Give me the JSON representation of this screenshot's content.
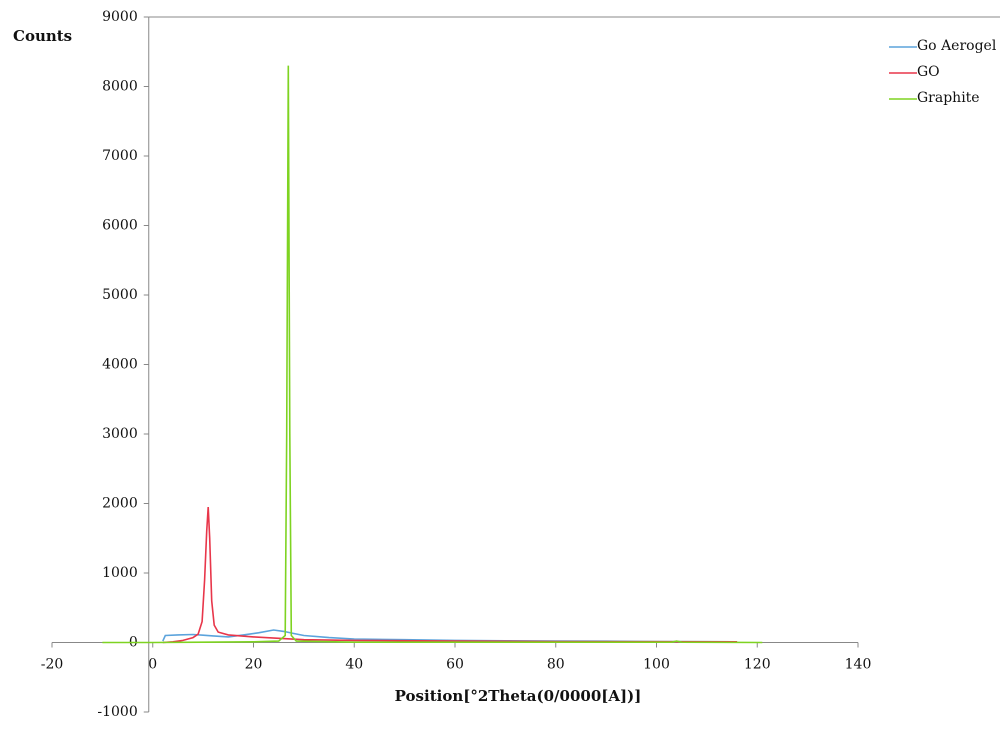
{
  "chart_data": {
    "type": "line",
    "y_label": "Counts",
    "x_label": "Position[°2Theta(0/0000[A])]",
    "xlim": [
      -20,
      140
    ],
    "xticks": [
      -20,
      0,
      20,
      40,
      60,
      80,
      100,
      120,
      140
    ],
    "ylim": [
      -1000,
      9000
    ],
    "yticks": [
      -1000,
      0,
      1000,
      2000,
      3000,
      4000,
      5000,
      6000,
      7000,
      8000,
      9000
    ],
    "legend": "top-right",
    "series": [
      {
        "name": "Go Aerogel",
        "color": "#5ba3dc",
        "x": [
          2,
          2.5,
          5,
          8,
          10,
          12,
          15,
          18,
          21,
          24,
          26,
          28,
          30,
          35,
          40,
          50,
          60,
          70,
          80,
          90,
          100,
          110,
          116
        ],
        "values": [
          20,
          100,
          110,
          115,
          105,
          95,
          80,
          110,
          140,
          180,
          160,
          130,
          100,
          70,
          50,
          40,
          30,
          25,
          20,
          18,
          15,
          12,
          10
        ]
      },
      {
        "name": "GO",
        "color": "#e8364a",
        "x": [
          2,
          4,
          6,
          8,
          9,
          9.8,
          10.3,
          10.7,
          11,
          11.3,
          11.7,
          12.2,
          13,
          15,
          20,
          25,
          30,
          40,
          60,
          80,
          100,
          116
        ],
        "values": [
          0,
          10,
          30,
          70,
          120,
          300,
          900,
          1600,
          1950,
          1500,
          600,
          250,
          150,
          110,
          80,
          60,
          40,
          30,
          20,
          15,
          12,
          10
        ]
      },
      {
        "name": "Graphite",
        "color": "#7ed321",
        "x": [
          -10,
          0,
          10,
          20,
          25,
          26.3,
          26.6,
          26.9,
          27.2,
          27.5,
          28.5,
          40,
          60,
          80,
          100,
          103,
          104,
          105,
          121
        ],
        "values": [
          0,
          0,
          5,
          10,
          20,
          100,
          3000,
          8300,
          3000,
          100,
          20,
          5,
          5,
          5,
          5,
          5,
          20,
          5,
          0
        ]
      }
    ]
  }
}
